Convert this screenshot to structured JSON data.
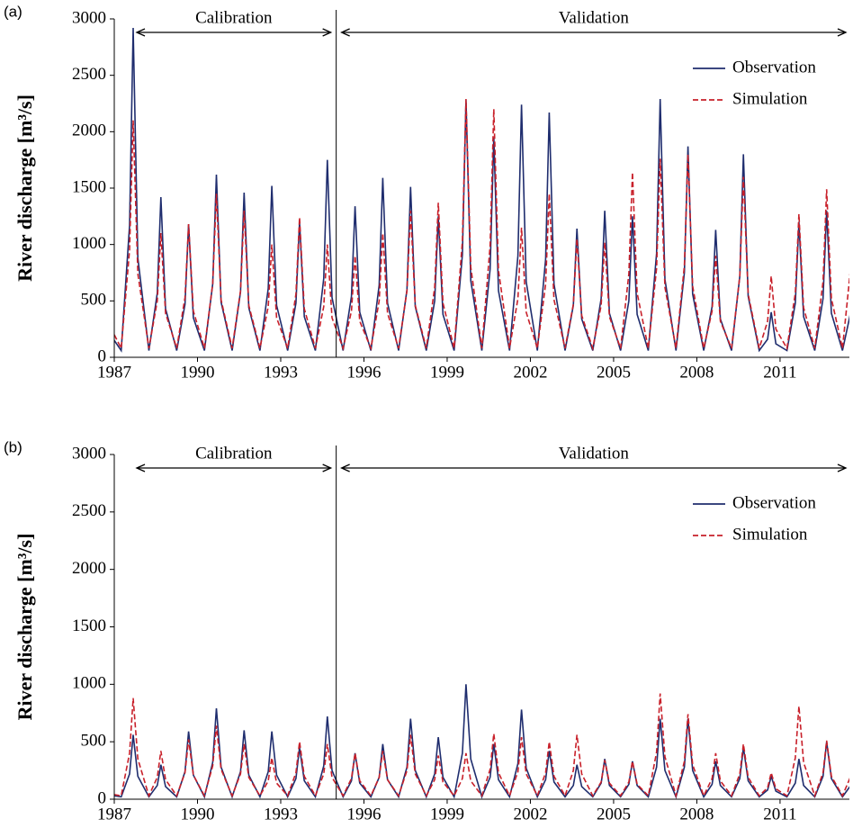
{
  "chart_data": [
    {
      "type": "line",
      "label": "(a)",
      "ylabel": "River discharge [m³/s]",
      "annotations": {
        "calibration": "Calibration",
        "validation": "Validation"
      },
      "divider": 1995,
      "legend": "upper right",
      "xlim": [
        1987,
        2013.5
      ],
      "xticks": [
        1987,
        1990,
        1993,
        1996,
        1999,
        2002,
        2005,
        2008,
        2011
      ],
      "ylim": [
        0,
        3000
      ],
      "yticks": [
        0,
        500,
        1000,
        1500,
        2000,
        2500,
        3000
      ],
      "x": [
        1987,
        1987.25,
        1987.55,
        1987.68,
        1987.85,
        1988.25,
        1988.55,
        1988.68,
        1988.85,
        1989.25,
        1989.55,
        1989.68,
        1989.85,
        1990.25,
        1990.55,
        1990.68,
        1990.85,
        1991.25,
        1991.55,
        1991.68,
        1991.85,
        1992.25,
        1992.55,
        1992.68,
        1992.85,
        1993.25,
        1993.55,
        1993.68,
        1993.85,
        1994.25,
        1994.55,
        1994.68,
        1994.85,
        1995.25,
        1995.55,
        1995.68,
        1995.85,
        1996.25,
        1996.55,
        1996.68,
        1996.85,
        1997.25,
        1997.55,
        1997.68,
        1997.85,
        1998.25,
        1998.55,
        1998.68,
        1998.85,
        1999.25,
        1999.55,
        1999.68,
        1999.85,
        2000.25,
        2000.55,
        2000.68,
        2000.85,
        2001.25,
        2001.55,
        2001.68,
        2001.85,
        2002.25,
        2002.55,
        2002.68,
        2002.85,
        2003.25,
        2003.55,
        2003.68,
        2003.85,
        2004.25,
        2004.55,
        2004.68,
        2004.85,
        2005.25,
        2005.55,
        2005.68,
        2005.85,
        2006.25,
        2006.55,
        2006.68,
        2006.85,
        2007.25,
        2007.55,
        2007.68,
        2007.85,
        2008.25,
        2008.55,
        2008.68,
        2008.85,
        2009.25,
        2009.55,
        2009.68,
        2009.85,
        2010.25,
        2010.55,
        2010.68,
        2010.85,
        2011.25,
        2011.55,
        2011.68,
        2011.85,
        2012.25,
        2012.55,
        2012.68,
        2012.85,
        2013.25,
        2013.55,
        2013.68,
        2013.85
      ],
      "series": [
        {
          "name": "Observation",
          "color": "#1f2d6e",
          "dash": false,
          "values": [
            150,
            60,
            1170,
            2920,
            880,
            60,
            570,
            1420,
            430,
            60,
            470,
            1180,
            350,
            60,
            650,
            1620,
            490,
            60,
            580,
            1460,
            440,
            60,
            610,
            1520,
            460,
            60,
            480,
            1200,
            360,
            60,
            700,
            1750,
            530,
            60,
            540,
            1340,
            400,
            60,
            640,
            1590,
            480,
            60,
            600,
            1510,
            450,
            60,
            500,
            1250,
            380,
            60,
            910,
            2280,
            680,
            60,
            780,
            1950,
            590,
            60,
            900,
            2240,
            670,
            60,
            870,
            2170,
            650,
            60,
            460,
            1140,
            340,
            60,
            520,
            1300,
            390,
            60,
            500,
            1250,
            380,
            60,
            920,
            2290,
            690,
            60,
            750,
            1870,
            560,
            60,
            450,
            1130,
            340,
            60,
            720,
            1800,
            540,
            60,
            160,
            400,
            120,
            60,
            480,
            1200,
            360,
            60,
            520,
            1300,
            390,
            60,
            400,
            1000,
            300
          ]
        },
        {
          "name": "Simulation",
          "color": "#c8202a",
          "dash": true,
          "values": [
            200,
            80,
            950,
            2100,
            740,
            80,
            500,
            1100,
            390,
            80,
            530,
            1180,
            410,
            80,
            650,
            1450,
            510,
            80,
            590,
            1300,
            460,
            80,
            450,
            1000,
            350,
            80,
            560,
            1240,
            430,
            80,
            450,
            1000,
            350,
            80,
            410,
            900,
            320,
            80,
            500,
            1100,
            390,
            80,
            590,
            1300,
            460,
            80,
            620,
            1370,
            480,
            80,
            1030,
            2290,
            800,
            80,
            990,
            2200,
            770,
            80,
            520,
            1150,
            400,
            80,
            650,
            1450,
            510,
            80,
            470,
            1050,
            370,
            80,
            460,
            1020,
            360,
            80,
            740,
            1640,
            570,
            80,
            790,
            1760,
            620,
            80,
            810,
            1800,
            630,
            80,
            410,
            900,
            320,
            80,
            720,
            1600,
            560,
            80,
            320,
            720,
            250,
            80,
            570,
            1270,
            440,
            80,
            670,
            1490,
            520,
            80,
            800,
            1780,
            620
          ]
        }
      ]
    },
    {
      "type": "line",
      "label": "(b)",
      "ylabel": "River discharge [m³/s]",
      "annotations": {
        "calibration": "Calibration",
        "validation": "Validation"
      },
      "divider": 1995,
      "legend": "upper right",
      "xlim": [
        1987,
        2013.5
      ],
      "xticks": [
        1987,
        1990,
        1993,
        1996,
        1999,
        2002,
        2005,
        2008,
        2011
      ],
      "ylim": [
        0,
        3000
      ],
      "yticks": [
        0,
        500,
        1000,
        1500,
        2000,
        2500,
        3000
      ],
      "x": [
        1987,
        1987.25,
        1987.55,
        1987.68,
        1987.85,
        1988.25,
        1988.55,
        1988.68,
        1988.85,
        1989.25,
        1989.55,
        1989.68,
        1989.85,
        1990.25,
        1990.55,
        1990.68,
        1990.85,
        1991.25,
        1991.55,
        1991.68,
        1991.85,
        1992.25,
        1992.55,
        1992.68,
        1992.85,
        1993.25,
        1993.55,
        1993.68,
        1993.85,
        1994.25,
        1994.55,
        1994.68,
        1994.85,
        1995.25,
        1995.55,
        1995.68,
        1995.85,
        1996.25,
        1996.55,
        1996.68,
        1996.85,
        1997.25,
        1997.55,
        1997.68,
        1997.85,
        1998.25,
        1998.55,
        1998.68,
        1998.85,
        1999.25,
        1999.55,
        1999.68,
        1999.85,
        2000.25,
        2000.55,
        2000.68,
        2000.85,
        2001.25,
        2001.55,
        2001.68,
        2001.85,
        2002.25,
        2002.55,
        2002.68,
        2002.85,
        2003.25,
        2003.55,
        2003.68,
        2003.85,
        2004.25,
        2004.55,
        2004.68,
        2004.85,
        2005.25,
        2005.55,
        2005.68,
        2005.85,
        2006.25,
        2006.55,
        2006.68,
        2006.85,
        2007.25,
        2007.55,
        2007.68,
        2007.85,
        2008.25,
        2008.55,
        2008.68,
        2008.85,
        2009.25,
        2009.55,
        2009.68,
        2009.85,
        2010.25,
        2010.55,
        2010.68,
        2010.85,
        2011.25,
        2011.55,
        2011.68,
        2011.85,
        2012.25,
        2012.55,
        2012.68,
        2012.85,
        2013.25,
        2013.55,
        2013.68,
        2013.85
      ],
      "series": [
        {
          "name": "Observation",
          "color": "#1f2d6e",
          "dash": false,
          "values": [
            30,
            20,
            220,
            560,
            200,
            20,
            120,
            300,
            110,
            20,
            240,
            590,
            210,
            20,
            320,
            790,
            280,
            20,
            240,
            600,
            210,
            20,
            240,
            590,
            210,
            20,
            180,
            450,
            160,
            20,
            290,
            720,
            250,
            20,
            160,
            400,
            140,
            20,
            190,
            480,
            170,
            20,
            280,
            700,
            250,
            20,
            220,
            540,
            190,
            20,
            400,
            1000,
            350,
            20,
            190,
            480,
            170,
            20,
            310,
            780,
            270,
            20,
            170,
            420,
            150,
            20,
            120,
            300,
            110,
            20,
            140,
            350,
            120,
            20,
            130,
            330,
            120,
            20,
            280,
            700,
            250,
            20,
            280,
            700,
            250,
            20,
            130,
            330,
            120,
            20,
            180,
            450,
            160,
            20,
            80,
            200,
            70,
            20,
            140,
            350,
            120,
            20,
            200,
            500,
            180,
            20,
            120,
            300,
            110
          ]
        },
        {
          "name": "Simulation",
          "color": "#c8202a",
          "dash": true,
          "values": [
            40,
            30,
            400,
            880,
            350,
            30,
            190,
            420,
            170,
            30,
            230,
            520,
            210,
            30,
            290,
            640,
            260,
            30,
            220,
            480,
            190,
            30,
            160,
            360,
            140,
            30,
            230,
            500,
            200,
            30,
            220,
            480,
            190,
            30,
            180,
            400,
            160,
            30,
            190,
            420,
            170,
            30,
            250,
            560,
            220,
            30,
            170,
            380,
            150,
            30,
            180,
            400,
            160,
            30,
            260,
            570,
            230,
            30,
            240,
            540,
            220,
            30,
            230,
            500,
            200,
            30,
            250,
            560,
            220,
            30,
            150,
            340,
            140,
            30,
            150,
            330,
            130,
            30,
            410,
            920,
            370,
            30,
            330,
            740,
            300,
            30,
            180,
            400,
            160,
            30,
            220,
            480,
            190,
            30,
            100,
            230,
            90,
            30,
            360,
            810,
            320,
            30,
            230,
            510,
            200,
            30,
            200,
            450,
            180
          ]
        }
      ]
    }
  ]
}
